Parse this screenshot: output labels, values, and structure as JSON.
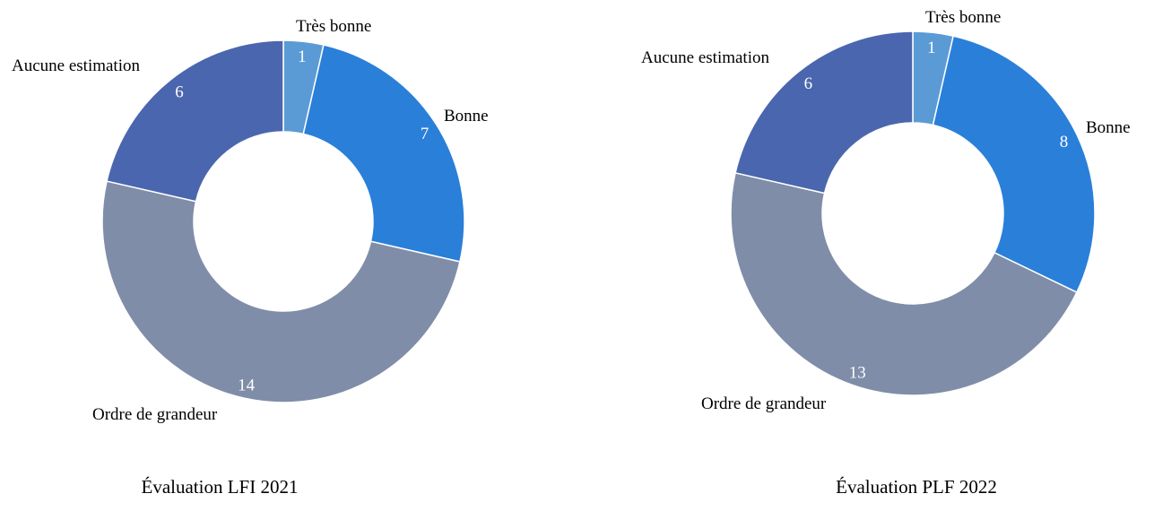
{
  "chart_data": [
    {
      "type": "pie",
      "donut": true,
      "title": "Évaluation LFI 2021",
      "categories": [
        "Très bonne",
        "Bonne",
        "Ordre de grandeur",
        "Aucune estimation"
      ],
      "values": [
        1,
        7,
        14,
        6
      ],
      "colors": [
        "#5B9BD5",
        "#2A7FD9",
        "#7F8DA8",
        "#4A66AE"
      ]
    },
    {
      "type": "pie",
      "donut": true,
      "title": "Évaluation PLF 2022",
      "categories": [
        "Très bonne",
        "Bonne",
        "Ordre de grandeur",
        "Aucune estimation"
      ],
      "values": [
        1,
        8,
        13,
        6
      ],
      "colors": [
        "#5B9BD5",
        "#2A7FD9",
        "#7F8DA8",
        "#4A66AE"
      ]
    }
  ]
}
